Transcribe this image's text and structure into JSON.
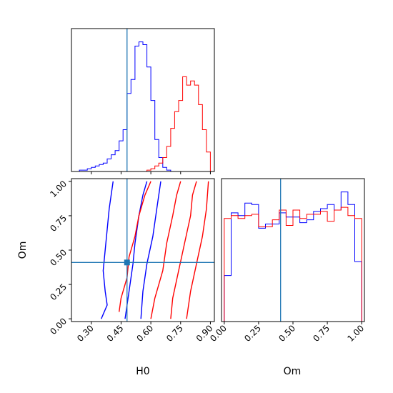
{
  "chart_data": [
    {
      "panel": "H0 marginal",
      "type": "histogram",
      "xlabel": "",
      "ylabel": "",
      "xlim": [
        0.2,
        0.92
      ],
      "truth_line": 0.48,
      "bin_edges": [
        0.24,
        0.26,
        0.28,
        0.3,
        0.32,
        0.34,
        0.36,
        0.38,
        0.4,
        0.42,
        0.44,
        0.46,
        0.48,
        0.5,
        0.52,
        0.54,
        0.56,
        0.58,
        0.6,
        0.62,
        0.64,
        0.66,
        0.68,
        0.7,
        0.72,
        0.74,
        0.76,
        0.78,
        0.8,
        0.82,
        0.84,
        0.86,
        0.88,
        0.9
      ],
      "series": [
        {
          "color": "#0000ff",
          "counts": [
            0.01,
            0.01,
            0.02,
            0.03,
            0.04,
            0.05,
            0.06,
            0.09,
            0.12,
            0.15,
            0.22,
            0.3,
            0.56,
            0.66,
            0.9,
            0.93,
            0.91,
            0.75,
            0.51,
            0.23,
            0.1,
            0.03,
            0.01,
            0.0,
            0.0,
            0.0,
            0.0,
            0.0,
            0.0,
            0.0,
            0.0,
            0.0,
            0.0
          ]
        },
        {
          "color": "#ff0000",
          "counts": [
            0.0,
            0.0,
            0.0,
            0.0,
            0.0,
            0.0,
            0.0,
            0.0,
            0.0,
            0.0,
            0.0,
            0.0,
            0.0,
            0.0,
            0.0,
            0.0,
            0.0,
            0.01,
            0.02,
            0.04,
            0.06,
            0.1,
            0.18,
            0.31,
            0.43,
            0.51,
            0.68,
            0.62,
            0.65,
            0.62,
            0.48,
            0.3,
            0.14
          ]
        }
      ]
    },
    {
      "panel": "H0 vs Om",
      "type": "contour",
      "xlabel": "H0",
      "ylabel": "Om",
      "xlim": [
        0.2,
        0.92
      ],
      "ylim": [
        -0.02,
        1.02
      ],
      "xticks": [
        "0.30",
        "0.45",
        "0.60",
        "0.75",
        "0.90"
      ],
      "yticks": [
        "0.00",
        "0.25",
        "0.50",
        "0.75",
        "1.00"
      ],
      "truth_point": [
        0.48,
        0.41
      ],
      "series": [
        {
          "color": "#0000ff",
          "levels": [
            [
              [
                0.35,
                0.0
              ],
              [
                0.38,
                0.1
              ],
              [
                0.37,
                0.2
              ],
              [
                0.36,
                0.35
              ],
              [
                0.37,
                0.5
              ],
              [
                0.38,
                0.65
              ],
              [
                0.39,
                0.8
              ],
              [
                0.41,
                1.0
              ]
            ],
            [
              [
                0.47,
                0.0
              ],
              [
                0.49,
                0.2
              ],
              [
                0.51,
                0.4
              ],
              [
                0.52,
                0.55
              ],
              [
                0.54,
                0.75
              ],
              [
                0.56,
                0.9
              ],
              [
                0.58,
                1.0
              ]
            ],
            [
              [
                0.55,
                0.0
              ],
              [
                0.56,
                0.2
              ],
              [
                0.58,
                0.4
              ],
              [
                0.61,
                0.6
              ],
              [
                0.63,
                0.8
              ],
              [
                0.65,
                1.0
              ]
            ]
          ]
        },
        {
          "color": "#ff0000",
          "levels": [
            [
              [
                0.44,
                0.05
              ],
              [
                0.45,
                0.15
              ],
              [
                0.48,
                0.3
              ],
              [
                0.49,
                0.45
              ],
              [
                0.52,
                0.6
              ],
              [
                0.54,
                0.75
              ],
              [
                0.57,
                0.9
              ],
              [
                0.6,
                1.0
              ]
            ],
            [
              [
                0.6,
                0.0
              ],
              [
                0.62,
                0.15
              ],
              [
                0.66,
                0.35
              ],
              [
                0.68,
                0.55
              ],
              [
                0.71,
                0.75
              ],
              [
                0.73,
                0.9
              ],
              [
                0.75,
                1.0
              ]
            ],
            [
              [
                0.7,
                0.0
              ],
              [
                0.71,
                0.15
              ],
              [
                0.74,
                0.35
              ],
              [
                0.77,
                0.55
              ],
              [
                0.8,
                0.75
              ],
              [
                0.81,
                0.9
              ],
              [
                0.83,
                1.0
              ]
            ],
            [
              [
                0.78,
                0.0
              ],
              [
                0.8,
                0.2
              ],
              [
                0.83,
                0.4
              ],
              [
                0.86,
                0.6
              ],
              [
                0.88,
                0.8
              ],
              [
                0.89,
                1.0
              ]
            ]
          ]
        }
      ]
    },
    {
      "panel": "Om marginal",
      "type": "histogram",
      "xlabel": "Om",
      "ylabel": "",
      "xlim": [
        -0.02,
        1.02
      ],
      "xticks": [
        "0.00",
        "0.25",
        "0.50",
        "0.75",
        "1.00"
      ],
      "truth_line": 0.41,
      "bin_edges": [
        0.0,
        0.05,
        0.1,
        0.15,
        0.2,
        0.25,
        0.3,
        0.35,
        0.4,
        0.45,
        0.5,
        0.55,
        0.6,
        0.65,
        0.7,
        0.75,
        0.8,
        0.85,
        0.9,
        0.95,
        1.0
      ],
      "series": [
        {
          "color": "#0000ff",
          "counts": [
            0.33,
            0.78,
            0.76,
            0.85,
            0.84,
            0.67,
            0.7,
            0.7,
            0.78,
            0.75,
            0.75,
            0.71,
            0.73,
            0.79,
            0.81,
            0.84,
            0.8,
            0.93,
            0.84,
            0.43
          ]
        },
        {
          "color": "#ff0000",
          "counts": [
            0.74,
            0.76,
            0.74,
            0.76,
            0.77,
            0.68,
            0.68,
            0.73,
            0.8,
            0.69,
            0.8,
            0.74,
            0.77,
            0.77,
            0.79,
            0.72,
            0.8,
            0.82,
            0.76,
            0.74
          ]
        }
      ]
    }
  ],
  "colors": {
    "truth": "#1f77b4",
    "blue": "#0000ff",
    "red": "#ff0000"
  }
}
